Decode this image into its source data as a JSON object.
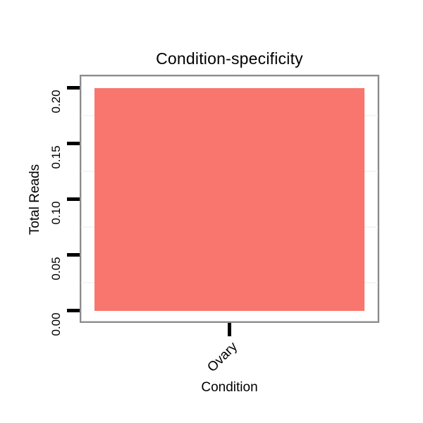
{
  "chart_data": {
    "type": "bar",
    "title": "Condition-specificity",
    "xlabel": "Condition",
    "ylabel": "Total Reads",
    "categories": [
      "Ovary"
    ],
    "values": [
      0.2
    ],
    "ytick_labels": [
      "0.00",
      "0.05",
      "0.10",
      "0.15",
      "0.20"
    ],
    "ytick_values": [
      0,
      0.05,
      0.1,
      0.15,
      0.2
    ],
    "grid_values": [
      0.025,
      0.075,
      0.125,
      0.175
    ],
    "ylim": [
      -0.0095,
      0.2105
    ],
    "legend": "none",
    "grid": "faint horizontal lines between ticks",
    "colors": {
      "bar": "#F8766D",
      "frame": "#8b8b8b",
      "frame_inner": "#d7d7d7",
      "tick": "#000000",
      "grid": "#f5f5f5",
      "text": "#000000",
      "background": "#ffffff"
    }
  }
}
